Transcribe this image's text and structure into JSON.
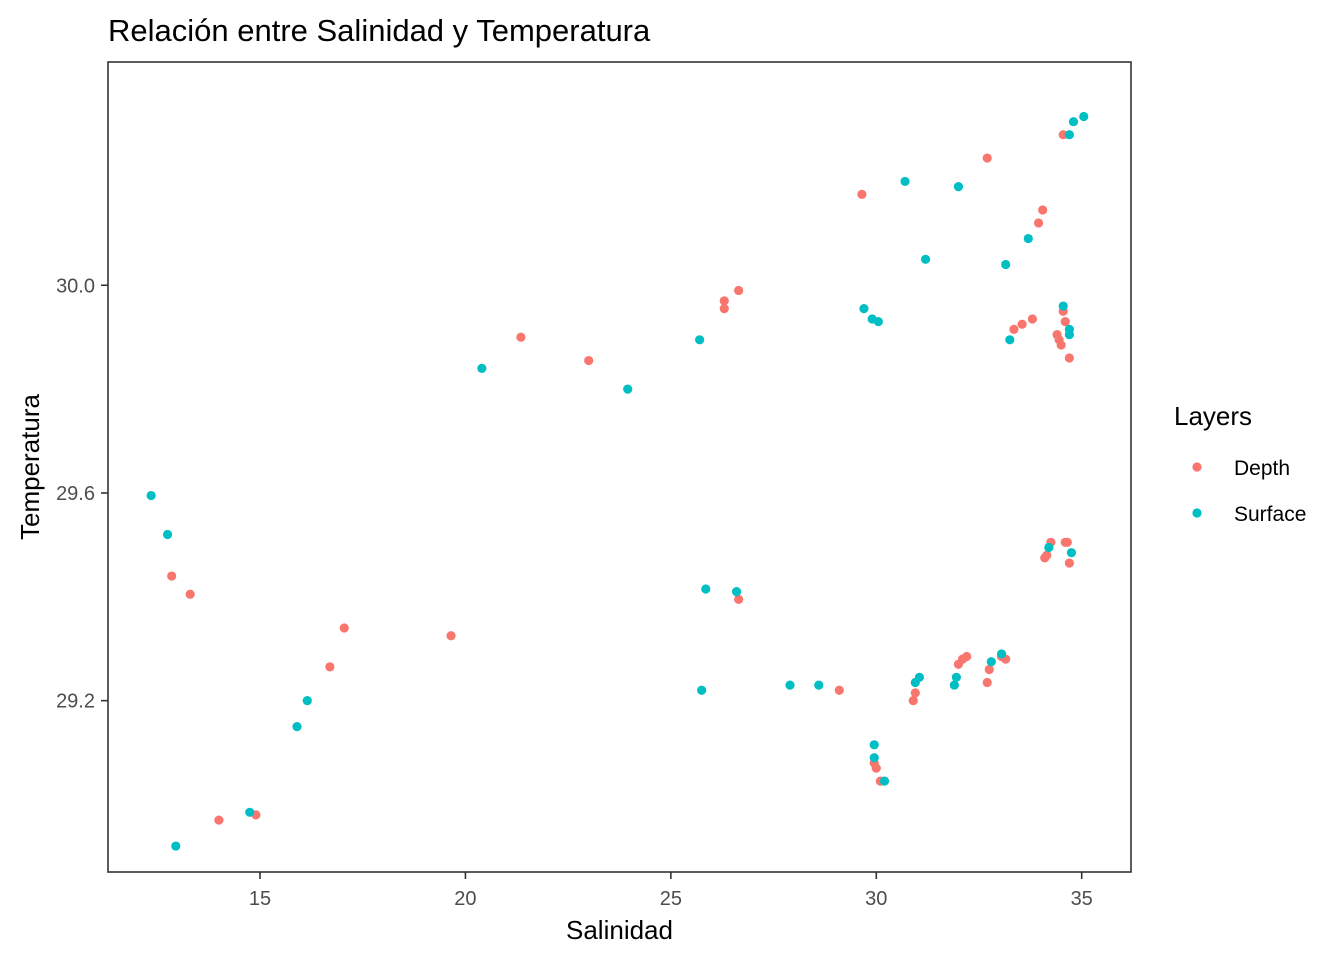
{
  "chart_data": {
    "type": "scatter",
    "title": "Relación entre Salinidad y Temperatura",
    "xlabel": "Salinidad",
    "ylabel": "Temperatura",
    "xlim": [
      11.3,
      36.2
    ],
    "ylim": [
      28.87,
      30.43
    ],
    "xticks": [
      15,
      20,
      25,
      30,
      35
    ],
    "xtick_labels": [
      "15",
      "20",
      "25",
      "30",
      "35"
    ],
    "yticks": [
      29.2,
      29.6,
      30.0
    ],
    "ytick_labels": [
      "29.2",
      "29.6",
      "30.0"
    ],
    "grid": false,
    "legend": {
      "title": "Layers",
      "placement": "right"
    },
    "series": [
      {
        "name": "Depth",
        "color": "#F8766D",
        "points": [
          [
            12.85,
            29.44
          ],
          [
            13.3,
            29.405
          ],
          [
            14.0,
            28.97
          ],
          [
            14.9,
            28.98
          ],
          [
            16.7,
            29.265
          ],
          [
            17.05,
            29.34
          ],
          [
            19.65,
            29.325
          ],
          [
            21.35,
            29.9
          ],
          [
            23.0,
            29.855
          ],
          [
            26.3,
            29.955
          ],
          [
            26.3,
            29.97
          ],
          [
            26.65,
            29.99
          ],
          [
            26.65,
            29.395
          ],
          [
            29.1,
            29.22
          ],
          [
            29.65,
            30.175
          ],
          [
            29.95,
            29.08
          ],
          [
            30.0,
            29.07
          ],
          [
            30.1,
            29.045
          ],
          [
            30.9,
            29.2
          ],
          [
            30.95,
            29.215
          ],
          [
            32.0,
            29.27
          ],
          [
            32.1,
            29.28
          ],
          [
            32.2,
            29.285
          ],
          [
            32.7,
            29.235
          ],
          [
            32.75,
            29.26
          ],
          [
            32.7,
            30.245
          ],
          [
            33.05,
            29.285
          ],
          [
            33.15,
            29.28
          ],
          [
            33.35,
            29.915
          ],
          [
            33.55,
            29.925
          ],
          [
            33.8,
            29.935
          ],
          [
            33.95,
            30.12
          ],
          [
            34.05,
            30.145
          ],
          [
            34.1,
            29.475
          ],
          [
            34.15,
            29.48
          ],
          [
            34.25,
            29.505
          ],
          [
            34.4,
            29.905
          ],
          [
            34.45,
            29.895
          ],
          [
            34.5,
            29.885
          ],
          [
            34.55,
            29.95
          ],
          [
            34.6,
            29.505
          ],
          [
            34.6,
            29.93
          ],
          [
            34.65,
            29.505
          ],
          [
            34.7,
            29.465
          ],
          [
            34.7,
            29.86
          ],
          [
            34.55,
            30.29
          ]
        ]
      },
      {
        "name": "Surface",
        "color": "#00BFC4",
        "points": [
          [
            12.35,
            29.595
          ],
          [
            12.75,
            29.52
          ],
          [
            12.95,
            28.92
          ],
          [
            14.75,
            28.985
          ],
          [
            15.9,
            29.15
          ],
          [
            16.15,
            29.2
          ],
          [
            20.4,
            29.84
          ],
          [
            23.95,
            29.8
          ],
          [
            25.7,
            29.895
          ],
          [
            25.75,
            29.22
          ],
          [
            25.85,
            29.415
          ],
          [
            26.6,
            29.41
          ],
          [
            27.9,
            29.23
          ],
          [
            28.6,
            29.23
          ],
          [
            29.7,
            29.955
          ],
          [
            29.9,
            29.935
          ],
          [
            30.05,
            29.93
          ],
          [
            29.95,
            29.115
          ],
          [
            29.95,
            29.09
          ],
          [
            30.2,
            29.045
          ],
          [
            30.7,
            30.2
          ],
          [
            30.95,
            29.235
          ],
          [
            31.05,
            29.245
          ],
          [
            31.2,
            30.05
          ],
          [
            31.9,
            29.23
          ],
          [
            31.95,
            29.245
          ],
          [
            32.0,
            30.19
          ],
          [
            32.8,
            29.275
          ],
          [
            33.05,
            29.29
          ],
          [
            33.15,
            30.04
          ],
          [
            33.25,
            29.895
          ],
          [
            33.7,
            30.09
          ],
          [
            34.2,
            29.495
          ],
          [
            34.55,
            29.96
          ],
          [
            34.7,
            29.905
          ],
          [
            34.7,
            29.915
          ],
          [
            34.75,
            29.485
          ],
          [
            34.7,
            30.29
          ],
          [
            34.8,
            30.315
          ],
          [
            35.05,
            30.325
          ]
        ]
      }
    ]
  }
}
